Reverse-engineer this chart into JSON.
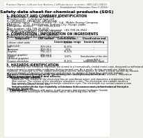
{
  "bg_color": "#f0f0eb",
  "page_bg": "#ffffff",
  "title": "Safety data sheet for chemical products (SDS)",
  "header_left": "Product Name: Lithium Ion Battery Cell",
  "header_right_line1": "Substance number: 98R-049-00815",
  "header_right_line2": "Established / Revision: Dec.7.2010",
  "section1_title": "1. PRODUCT AND COMPANY IDENTIFICATION",
  "section1_lines": [
    "・Product name: Lithium Ion Battery Cell",
    "・Product code: Cylindrical-type cell",
    "    (UR18650U, UR18650E, UR18650A)",
    "・Company name:    Sanyo Electric Co., Ltd., Mobile Energy Company",
    "・Address:    2001  Kamimakura, Sumoto-City, Hyogo, Japan",
    "・Telephone number:    +81-799-26-4111",
    "・Fax number: +81-799-26-4120",
    "・Emergency telephone number (daytime): +81-799-26-3942",
    "    (Night and holiday): +81-799-26-4124"
  ],
  "section2_title": "2. COMPOSITION / INFORMATION ON INGREDIENTS",
  "section2_intro": "・Substance or preparation: Preparation",
  "section2_sub": "・Information about the chemical nature of product:",
  "table_headers": [
    "Component",
    "CAS number",
    "Concentration /\nConcentration range",
    "Classification and\nhazard labeling"
  ],
  "table_rows": [
    [
      "Lithium cobalt oxide\n(LiMnCoO4)",
      "-",
      "30-60%",
      "-"
    ],
    [
      "Iron",
      "7439-89-6",
      "15-30%",
      "-"
    ],
    [
      "Aluminum",
      "7429-90-5",
      "2-5%",
      "-"
    ],
    [
      "Graphite\n(Natural graphite)\n(Artificial graphite)",
      "7782-42-5\n7782-42-5",
      "10-20%",
      "-"
    ],
    [
      "Copper",
      "7440-50-8",
      "5-10%",
      "Sensitization of the skin\ngroup R43.2"
    ],
    [
      "Organic electrolyte",
      "-",
      "10-20%",
      "Inflammable liquid"
    ]
  ],
  "section3_title": "3. HAZARDS IDENTIFICATION",
  "section3_para1": "For the battery cell, chemical materials are stored in a hermetically sealed metal case, designed to withstand\ntemperatures in reasonable conditions during normal use. As a result, during normal use, there is no\nphysical danger of ignition or explosion and there is no danger of hazardous material leakage.",
  "section3_para2": "However, if exposed to a fire, added mechanical shocks, decomposed, or when electric current by misuse,\nthe gas inside cannot be operated. The battery cell case will be breached at the extreme. Hazardous\nmaterials may be released.",
  "section3_para3": "Moreover, if heated strongly by the surrounding fire, solid gas may be emitted.",
  "section3_bullet1": "・Most important hazard and effects:",
  "section3_human": "Human health effects:",
  "section3_inhale": "Inhalation: The release of the electrolyte has an anesthesia action and stimulates a respiratory tract.",
  "section3_skin": "Skin contact: The release of the electrolyte stimulates a skin. The electrolyte skin contact causes a\nsore and stimulation on the skin.",
  "section3_eye": "Eye contact: The release of the electrolyte stimulates eyes. The electrolyte eye contact causes a sore\nand stimulation on the eye. Especially, a substance that causes a strong inflammation of the eye is\ncontained.",
  "section3_env": "Environmental effects: Since a battery cell remains in the environment, do not throw out it into the\nenvironment.",
  "section3_specific": "・Specific hazards:",
  "section3_specific1": "If the electrolyte contacts with water, it will generate detrimental hydrogen fluoride.",
  "section3_specific2": "Since the used electrolyte is inflammable liquid, do not bring close to fire."
}
